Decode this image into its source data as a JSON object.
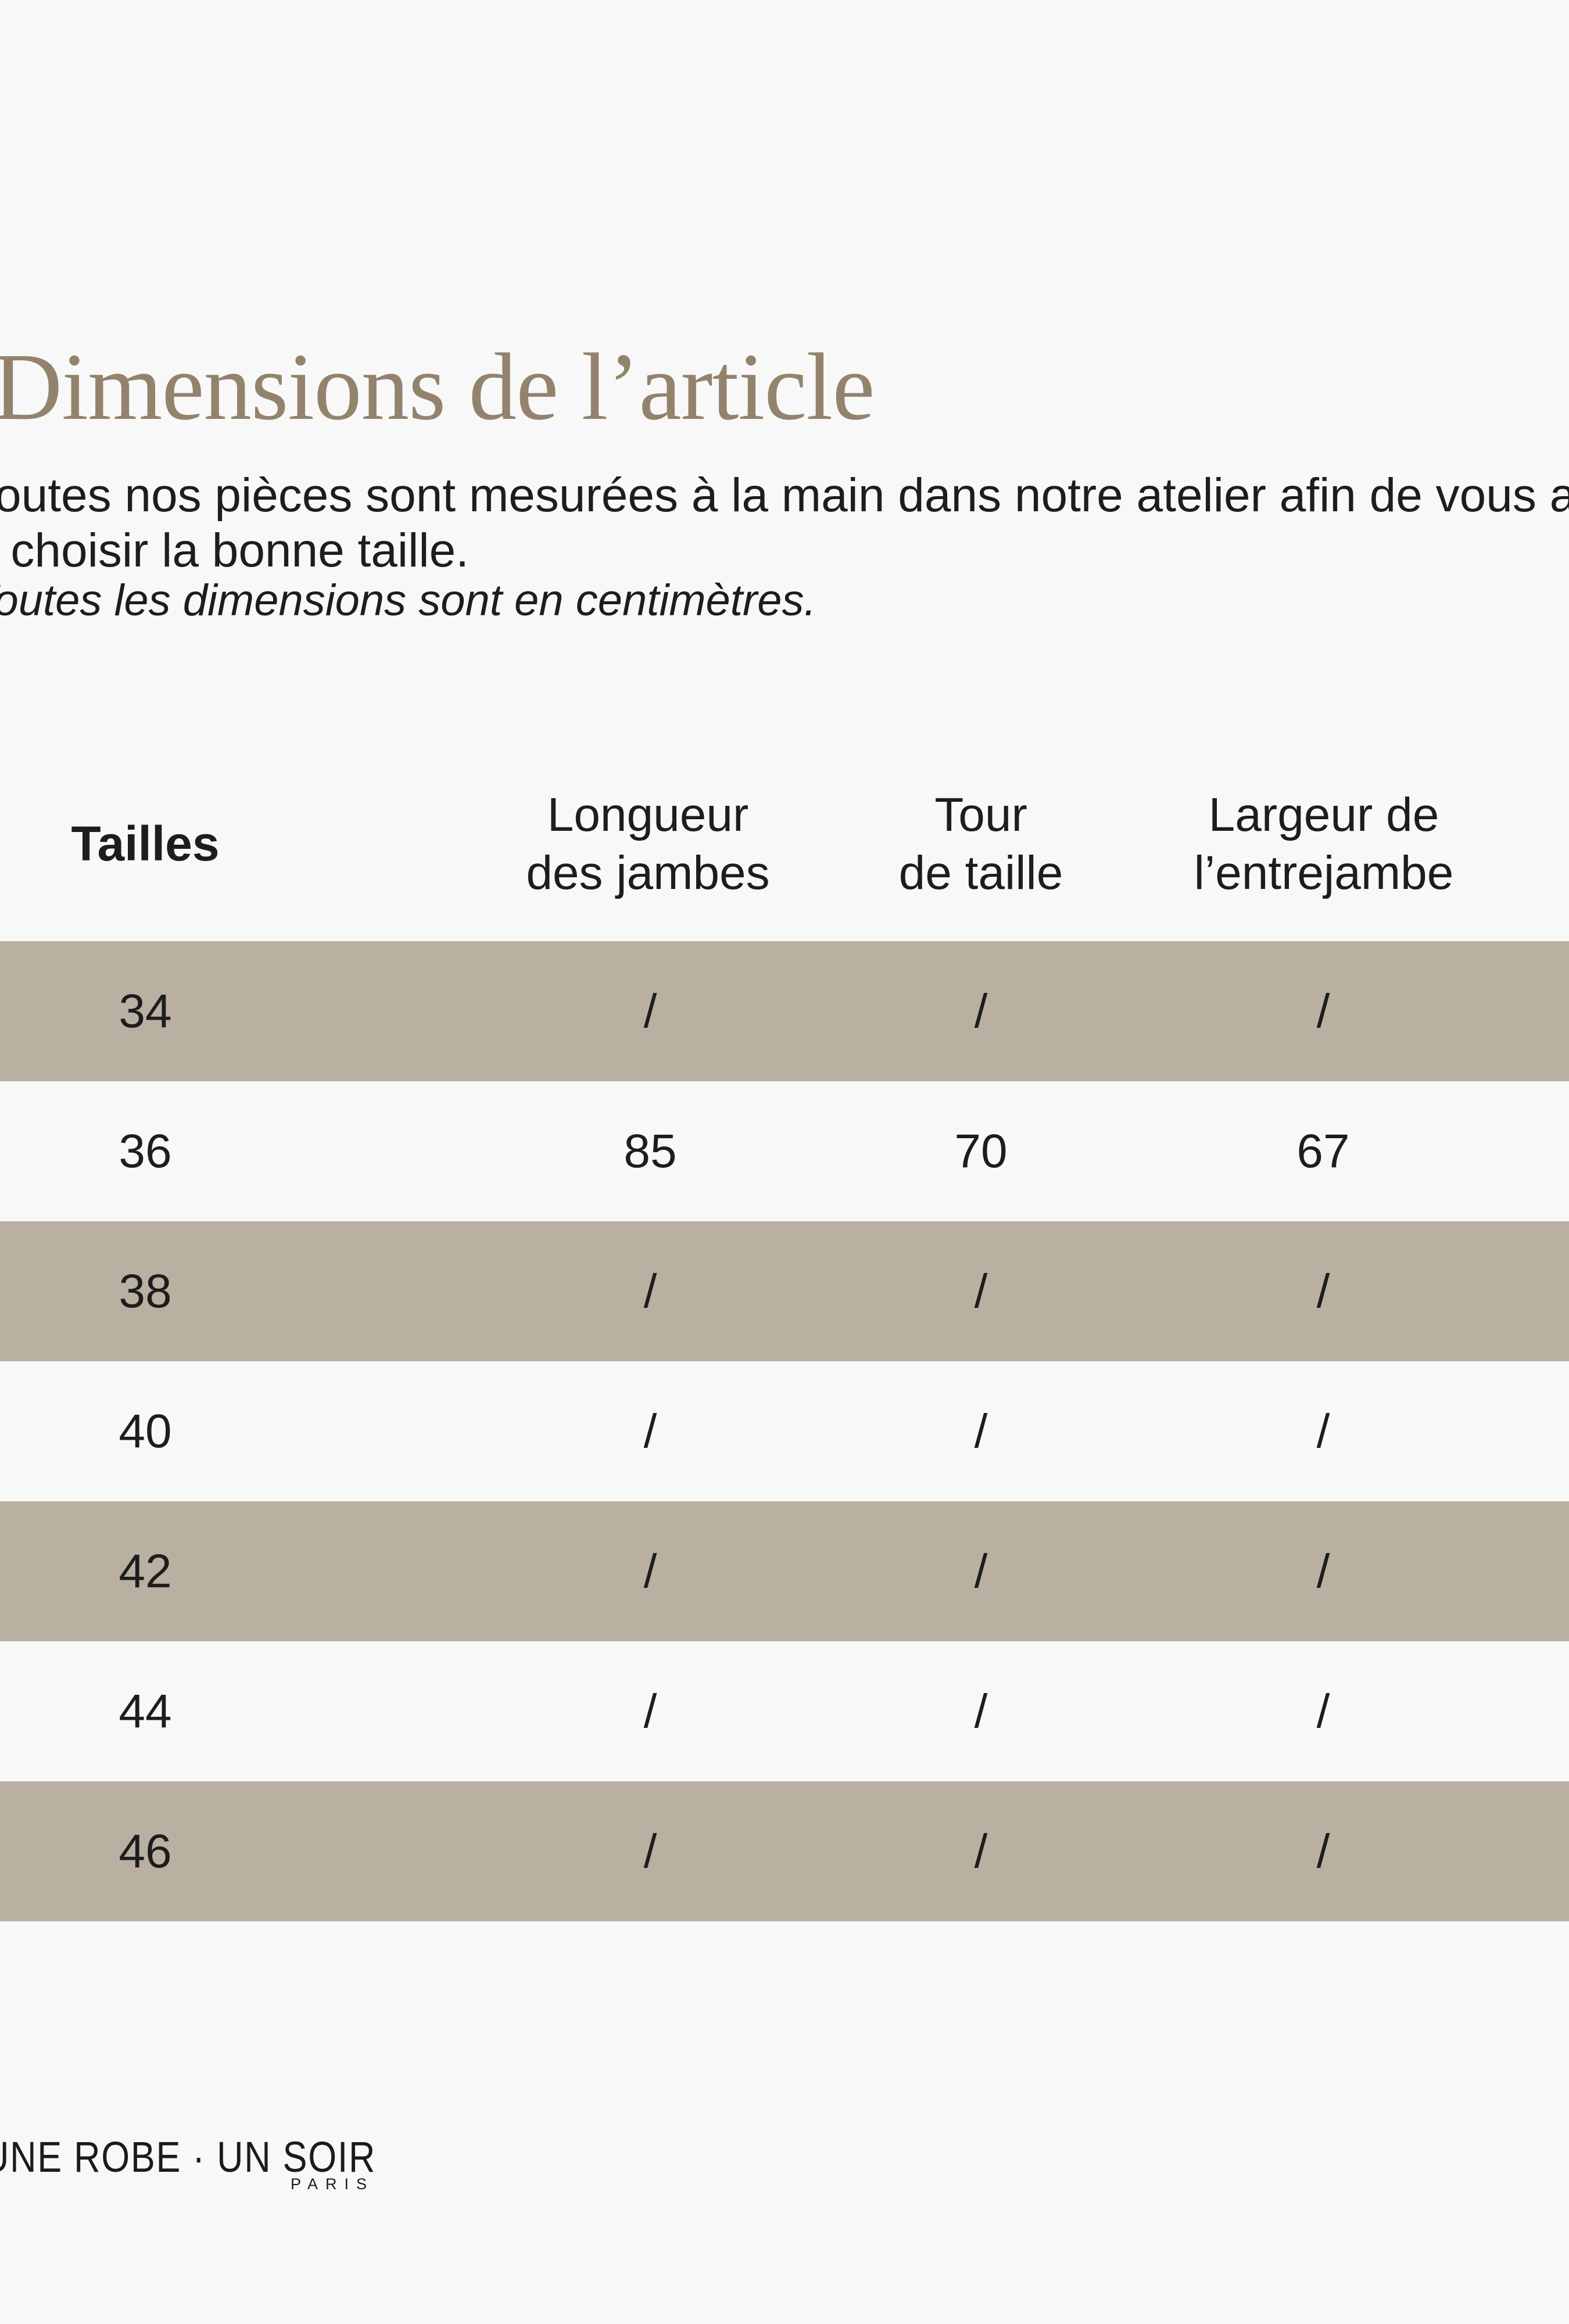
{
  "page_background": "#f8f8f8",
  "title": {
    "text": "Dimensions de l’article",
    "color": "#93836d"
  },
  "intro": {
    "line1": "Toutes nos pièces sont mesurées à la main dans notre atelier afin de vous aider",
    "line2": "à choisir la bonne taille.",
    "note": "Toutes les dimensions sont en centimètres."
  },
  "table": {
    "highlight_color": "#b9b0a2",
    "header": {
      "sizes": "Tailles",
      "col2_line1": "Longueur",
      "col2_line2": "des jambes",
      "col3_line1": "Tour",
      "col3_line2": "de taille",
      "col4_line1": "Largeur de",
      "col4_line2": "l’entrejambe"
    },
    "rows": [
      {
        "size": "34",
        "values": [
          "/",
          "/",
          "/"
        ]
      },
      {
        "size": "36",
        "values": [
          "85",
          "70",
          "67"
        ]
      },
      {
        "size": "38",
        "values": [
          "/",
          "/",
          "/"
        ]
      },
      {
        "size": "40",
        "values": [
          "/",
          "/",
          "/"
        ]
      },
      {
        "size": "42",
        "values": [
          "/",
          "/",
          "/"
        ]
      },
      {
        "size": "44",
        "values": [
          "/",
          "/",
          "/"
        ]
      },
      {
        "size": "46",
        "values": [
          "/",
          "/",
          "/"
        ]
      }
    ]
  },
  "footer": {
    "brand": "UNE ROBE · UN SOIR",
    "city": "PARIS"
  }
}
